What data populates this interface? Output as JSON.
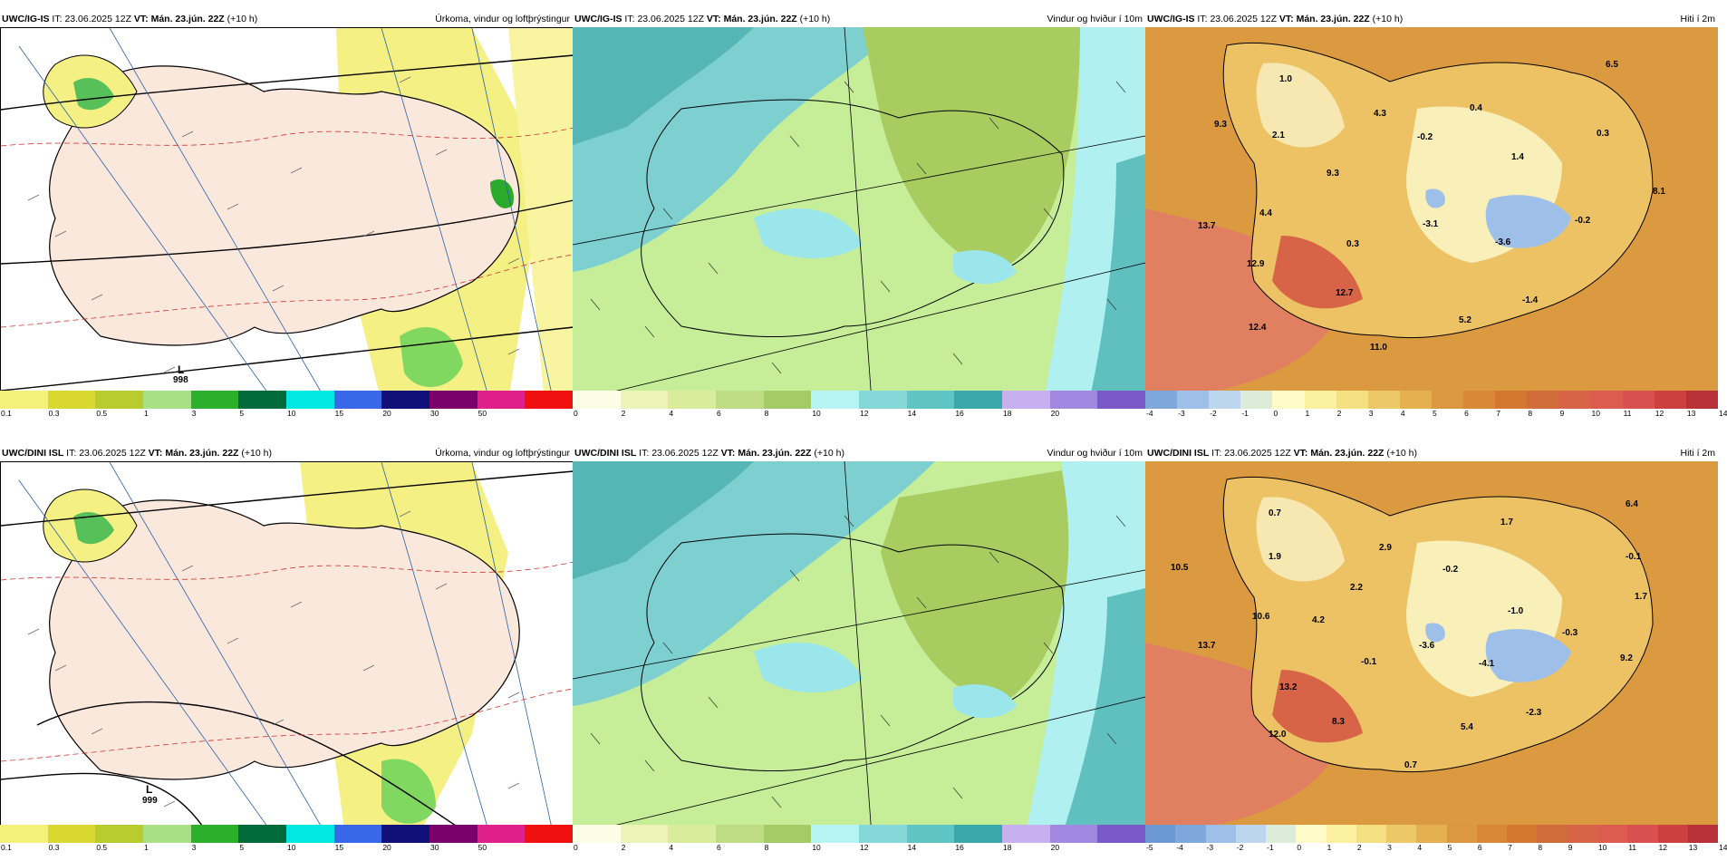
{
  "rows": [
    {
      "model": "UWC/IG-IS",
      "it_label": "IT:",
      "it": "23.06.2025 12Z",
      "vt_label": "VT:",
      "vt": "Mán. 23.jún. 22Z",
      "lead": "(+10 h)",
      "panels": [
        {
          "title": "Úrkoma, vindur og loftþrýstingur",
          "low_label": "L",
          "low_value": "998"
        },
        {
          "title": "Vindur og hviður í 10m"
        },
        {
          "title": "Hiti í 2m",
          "values": [
            "1.0",
            "6.5",
            "9.3",
            "2.1",
            "4.3",
            "0.4",
            "-0.2",
            "0.3",
            "9.3",
            "1.4",
            "4.4",
            "-3.1",
            "13.7",
            "0.3",
            "-3.6",
            "-0.2",
            "8.1",
            "12.9",
            "12.7",
            "-1.4",
            "5.2",
            "12.4",
            "11.0"
          ]
        }
      ]
    },
    {
      "model": "UWC/DINI ISL",
      "it_label": "IT:",
      "it": "23.06.2025 12Z",
      "vt_label": "VT:",
      "vt": "Mán. 23.jún. 22Z",
      "lead": "(+10 h)",
      "panels": [
        {
          "title": "Úrkoma, vindur og loftþrýstingur",
          "low_label": "L",
          "low_value": "999"
        },
        {
          "title": "Vindur og hviður í 10m"
        },
        {
          "title": "Hiti í 2m",
          "values": [
            "0.7",
            "1.7",
            "6.4",
            "10.5",
            "1.9",
            "2.9",
            "-0.2",
            "-0.1",
            "2.2",
            "1.7",
            "10.6",
            "4.2",
            "-1.0",
            "13.7",
            "-3.6",
            "-0.3",
            "-0.1",
            "-4.1",
            "9.2",
            "13.2",
            "-2.3",
            "8.3",
            "5.4",
            "12.0",
            "0.7"
          ]
        }
      ]
    }
  ],
  "legends": {
    "precip": {
      "ticks": [
        "0.1",
        "0.3",
        "0.5",
        "1",
        "3",
        "5",
        "10",
        "15",
        "20",
        "30",
        "50"
      ],
      "colors": [
        "#f5f07a",
        "#d8d830",
        "#b8cc30",
        "#a8e088",
        "#2cb02c",
        "#006a3a",
        "#00e8e0",
        "#3868e8",
        "#101078",
        "#7a006a",
        "#e0208a",
        "#f01010"
      ]
    },
    "wind": {
      "ticks": [
        "0",
        "2",
        "4",
        "6",
        "8",
        "10",
        "12",
        "14",
        "16",
        "18",
        "20"
      ],
      "colors": [
        "#fbfde4",
        "#eef4b8",
        "#d8ec9c",
        "#bedc84",
        "#a4cc66",
        "#b6f4f4",
        "#86d8d8",
        "#5ec4c4",
        "#3aa8a8",
        "#c8b0f0",
        "#a088e0",
        "#7a58c8"
      ]
    },
    "temp_top": {
      "ticks": [
        "-4",
        "-3",
        "-2",
        "-1",
        "0",
        "1",
        "2",
        "3",
        "4",
        "5",
        "6",
        "7",
        "8",
        "9",
        "10",
        "11",
        "12",
        "13",
        "14"
      ],
      "colors": [
        "#7ea8dc",
        "#9ec0e8",
        "#bcd6f0",
        "#dcecd8",
        "#fffbc8",
        "#fbf0a0",
        "#f4e080",
        "#ecc868",
        "#e4b050",
        "#dc9840",
        "#d88838",
        "#d47830",
        "#d06c38",
        "#d86448",
        "#dc5c50",
        "#d85050",
        "#cc4040",
        "#b83038"
      ]
    },
    "temp_bot": {
      "ticks": [
        "-5",
        "-4",
        "-3",
        "-2",
        "-1",
        "0",
        "1",
        "2",
        "3",
        "4",
        "5",
        "6",
        "7",
        "8",
        "9",
        "10",
        "11",
        "12",
        "13",
        "14"
      ],
      "colors": [
        "#6c98d4",
        "#7ea8dc",
        "#9ec0e8",
        "#bcd6f0",
        "#dcecd8",
        "#fffbc8",
        "#fbf0a0",
        "#f4e080",
        "#ecc868",
        "#e4b050",
        "#dc9840",
        "#d88838",
        "#d47830",
        "#d06c38",
        "#d86448",
        "#dc5c50",
        "#d85050",
        "#cc4040",
        "#b83038"
      ]
    }
  }
}
